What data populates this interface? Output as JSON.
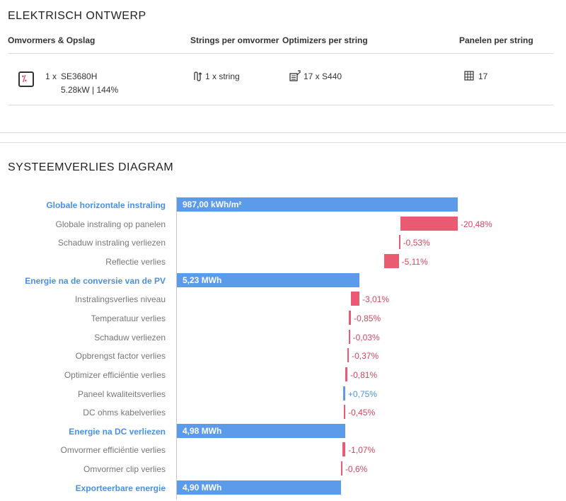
{
  "design": {
    "title": "ELEKTRISCH ONTWERP",
    "columns": [
      "Omvormers & Opslag",
      "Strings per omvormer",
      "Optimizers per string",
      "Panelen per string"
    ],
    "inverter": {
      "count": "1 x",
      "model": "SE3680H",
      "spec": "5.28kW | 144%"
    },
    "strings": "1 x string",
    "optimizers": "17 x S440",
    "panels": "17",
    "icons": [
      "inverter-icon",
      "string-icon",
      "optimizer-icon",
      "panel-grid-icon"
    ]
  },
  "losses": {
    "title": "SYSTEEMVERLIES DIAGRAM"
  },
  "colors": {
    "total": "#5b9bea",
    "loss": "#ea5a72",
    "gain": "#5b9bea",
    "heading": "#4a90e2"
  },
  "chart_data": {
    "type": "bar",
    "subtype": "waterfall",
    "title": "SYSTEEMVERLIES DIAGRAM",
    "rows": [
      {
        "label": "Globale horizontale instraling",
        "kind": "total",
        "value": 100,
        "value_label": "987,00 kWh/m²"
      },
      {
        "label": "Globale instraling op panelen",
        "kind": "loss",
        "value": -20.48,
        "value_label": "-20,48%"
      },
      {
        "label": "Schaduw instraling verliezen",
        "kind": "loss",
        "value": -0.53,
        "value_label": "-0,53%"
      },
      {
        "label": "Reflectie verlies",
        "kind": "loss",
        "value": -5.11,
        "value_label": "-5,11%"
      },
      {
        "label": "Energie na de conversie van de PV",
        "kind": "total",
        "value": 65.0,
        "value_label": "5,23 MWh"
      },
      {
        "label": "Instralingsverlies niveau",
        "kind": "loss",
        "value": -3.01,
        "value_label": "-3,01%"
      },
      {
        "label": "Temperatuur verlies",
        "kind": "loss",
        "value": -0.85,
        "value_label": "-0,85%"
      },
      {
        "label": "Schaduw verliezen",
        "kind": "loss",
        "value": -0.03,
        "value_label": "-0,03%"
      },
      {
        "label": "Opbrengst factor verlies",
        "kind": "loss",
        "value": -0.37,
        "value_label": "-0,37%"
      },
      {
        "label": "Optimizer efficiëntie verlies",
        "kind": "loss",
        "value": -0.81,
        "value_label": "-0,81%"
      },
      {
        "label": "Paneel kwaliteitsverlies",
        "kind": "gain",
        "value": 0.75,
        "value_label": "+0,75%"
      },
      {
        "label": "DC ohms kabelverlies",
        "kind": "loss",
        "value": -0.45,
        "value_label": "-0,45%"
      },
      {
        "label": "Energie na DC verliezen",
        "kind": "total",
        "value": 60.0,
        "value_label": "4,98 MWh"
      },
      {
        "label": "Omvormer efficiëntie verlies",
        "kind": "loss",
        "value": -1.07,
        "value_label": "-1,07%"
      },
      {
        "label": "Omvormer clip verlies",
        "kind": "loss",
        "value": -0.6,
        "value_label": "-0,6%"
      },
      {
        "label": "Exporteerbare energie",
        "kind": "total",
        "value": 58.5,
        "value_label": "4,90 MWh"
      }
    ],
    "xlim": [
      0,
      100
    ]
  }
}
